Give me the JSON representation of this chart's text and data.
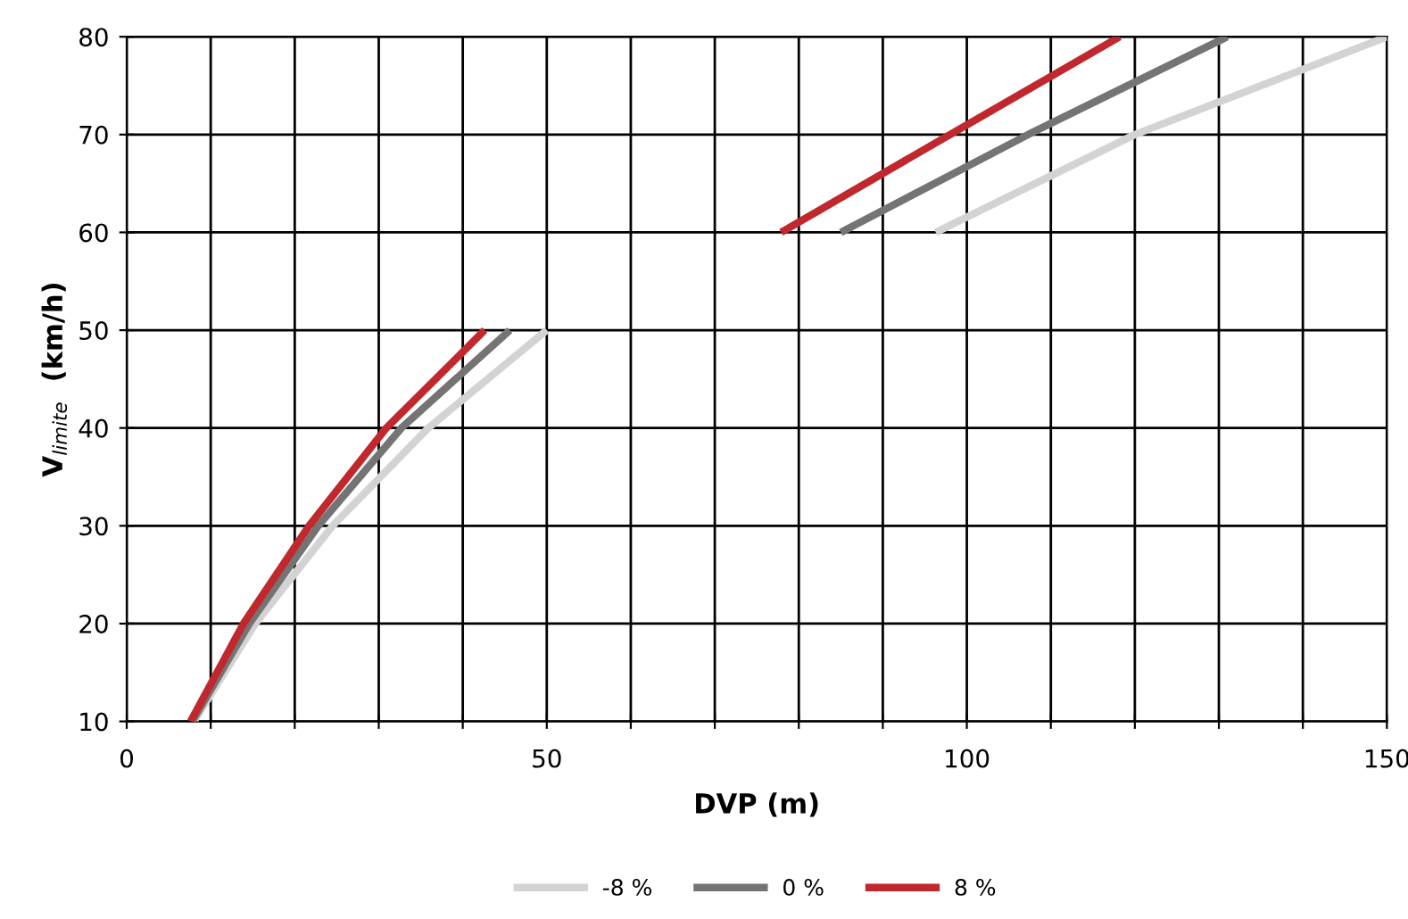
{
  "chart_data": {
    "type": "line",
    "xlabel": "DVP (m)",
    "ylabel": "V$_{limite}$  (km/h)",
    "xlim": [
      0,
      150
    ],
    "ylim": [
      10,
      80
    ],
    "xticks": [
      0,
      {
        "value": 10,
        "label": null
      },
      {
        "value": 20,
        "label": null
      },
      {
        "value": 30,
        "label": null
      },
      {
        "value": 40,
        "label": null
      },
      50,
      {
        "value": 60,
        "label": null
      },
      {
        "value": 70,
        "label": null
      },
      {
        "value": 80,
        "label": null
      },
      {
        "value": 90,
        "label": null
      },
      100,
      {
        "value": 110,
        "label": null
      },
      {
        "value": 120,
        "label": null
      },
      {
        "value": 130,
        "label": null
      },
      {
        "value": 140,
        "label": null
      },
      150
    ],
    "yticks": [
      10,
      20,
      30,
      40,
      50,
      60,
      70,
      80
    ],
    "grid": true,
    "legend": "bottom",
    "marker": "none",
    "line_style": "solid",
    "series": [
      {
        "name": "-8 %",
        "color": "#d3d3d3",
        "x": [
          8,
          15.3,
          24.5,
          35.9,
          50,
          null,
          96.3,
          120,
          150
        ],
        "values": [
          10,
          20,
          30,
          40,
          50,
          null,
          60,
          70,
          80
        ]
      },
      {
        "name": "0 %",
        "color": "#747474",
        "x": [
          7.8,
          14.6,
          22.8,
          32.7,
          45.6,
          null,
          85,
          107.3,
          131
        ],
        "values": [
          10,
          20,
          30,
          40,
          50,
          null,
          60,
          70,
          80
        ]
      },
      {
        "name": "8 %",
        "color": "#c0282d",
        "x": [
          7.6,
          13.9,
          21.7,
          30.9,
          42.6,
          null,
          77.9,
          98,
          118.2
        ],
        "values": [
          10,
          20,
          30,
          40,
          50,
          null,
          60,
          70,
          80
        ]
      }
    ]
  }
}
